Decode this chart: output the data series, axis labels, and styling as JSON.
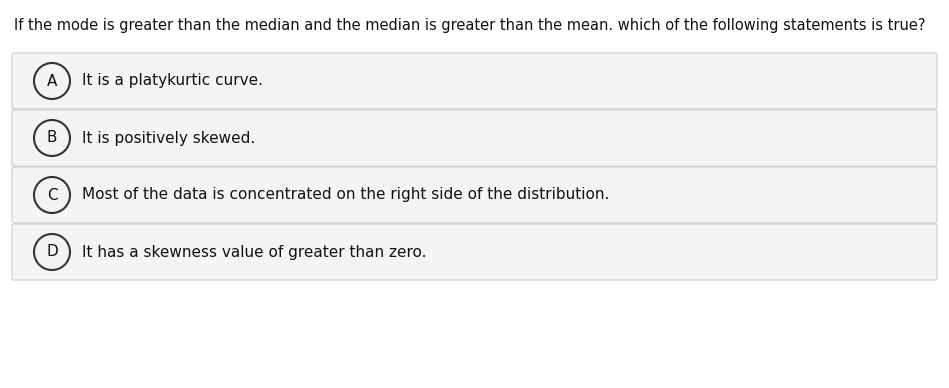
{
  "question": "If the mode is greater than the median and the median is greater than the mean. which of the following statements is true?",
  "options": [
    {
      "label": "A",
      "text": "It is a platykurtic curve."
    },
    {
      "label": "B",
      "text": "It is positively skewed."
    },
    {
      "label": "C",
      "text": "Most of the data is concentrated on the right side of the distribution."
    },
    {
      "label": "D",
      "text": "It has a skewness value of greater than zero."
    }
  ],
  "background_color": "#ffffff",
  "option_box_color": "#f4f4f4",
  "option_box_edge_color": "#cccccc",
  "question_fontsize": 10.5,
  "option_fontsize": 11,
  "label_fontsize": 11,
  "text_color": "#111111",
  "circle_color": "#333333",
  "fig_width": 9.49,
  "fig_height": 3.88,
  "dpi": 100
}
